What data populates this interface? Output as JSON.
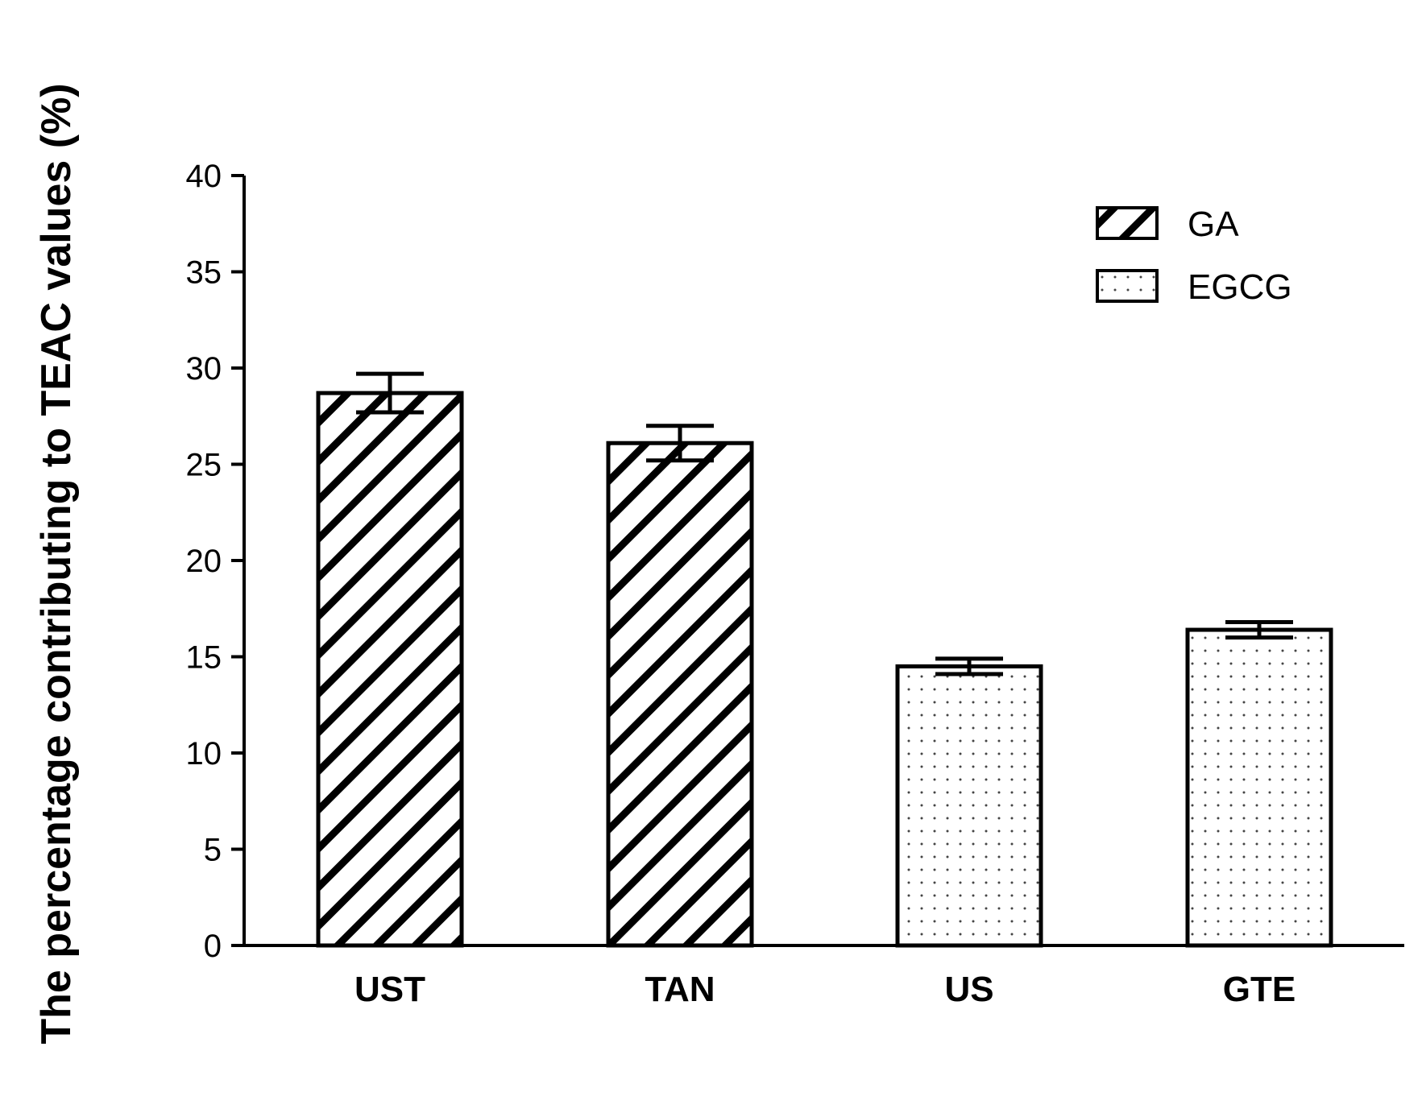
{
  "chart_data": {
    "type": "bar",
    "title": "",
    "xlabel": "",
    "ylabel": "The percentage contributing to TEAC values (%)",
    "ylim": [
      0,
      40
    ],
    "yticks": [
      0,
      5,
      10,
      15,
      20,
      25,
      30,
      35,
      40
    ],
    "categories": [
      "UST",
      "TAN",
      "US",
      "GTE"
    ],
    "values": [
      28.7,
      26.1,
      14.5,
      16.4
    ],
    "errors": [
      1.0,
      0.9,
      0.4,
      0.4
    ],
    "bar_series": [
      "GA",
      "GA",
      "EGCG",
      "EGCG"
    ],
    "legend": {
      "placement": "top-right",
      "entries": [
        {
          "name": "GA",
          "pattern": "diagonal-hatch"
        },
        {
          "name": "EGCG",
          "pattern": "dots"
        }
      ]
    },
    "grid": false
  }
}
